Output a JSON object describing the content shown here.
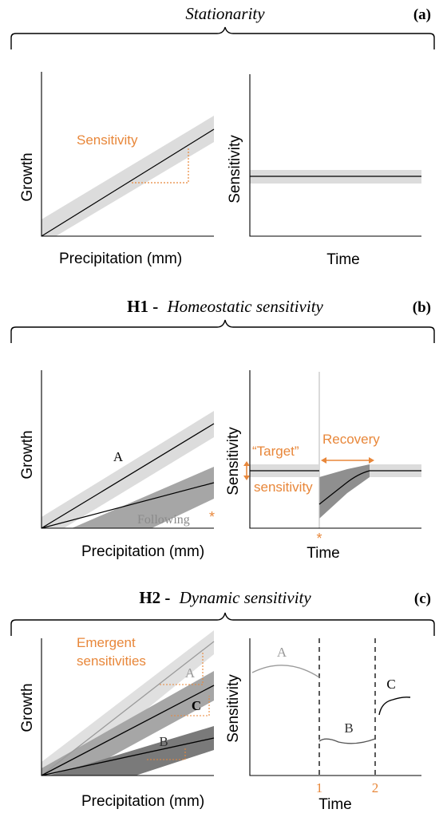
{
  "panel_a": {
    "title": "Stationarity",
    "tag": "(a)",
    "left": {
      "ylabel": "Growth",
      "xlabel": "Precipitation (mm)",
      "annotation": "Sensitivity"
    },
    "right": {
      "ylabel": "Sensitivity",
      "xlabel": "Time"
    }
  },
  "panel_b": {
    "title_bold": "H1 -",
    "title_italic": "Homeostatic sensitivity",
    "tag": "(b)",
    "left": {
      "ylabel": "Growth",
      "xlabel": "Precipitation (mm)",
      "line_a": "A",
      "line_following": "Following",
      "star": "*"
    },
    "right": {
      "ylabel": "Sensitivity",
      "xlabel": "Time",
      "target_line1": "“Target”",
      "target_line2": "sensitivity",
      "recovery": "Recovery",
      "star": "*"
    }
  },
  "panel_c": {
    "title_bold": "H2 -",
    "title_italic": "Dynamic sensitivity",
    "tag": "(c)",
    "left": {
      "ylabel": "Growth",
      "xlabel": "Precipitation (mm)",
      "annotation_line1": "Emergent",
      "annotation_line2": "sensitivities",
      "label_a": "A",
      "label_b": "B",
      "label_c": "C"
    },
    "right": {
      "ylabel": "Sensitivity",
      "xlabel": "Time",
      "label_a": "A",
      "label_b": "B",
      "label_c": "C",
      "break_1": "1",
      "break_2": "2"
    }
  },
  "colors": {
    "accent": "#E8873A",
    "band_light": "#dcdcdc",
    "band_mid": "#a6a6a6",
    "band_dark": "#7a7a7a",
    "line_gray": "#9a9a9a"
  }
}
